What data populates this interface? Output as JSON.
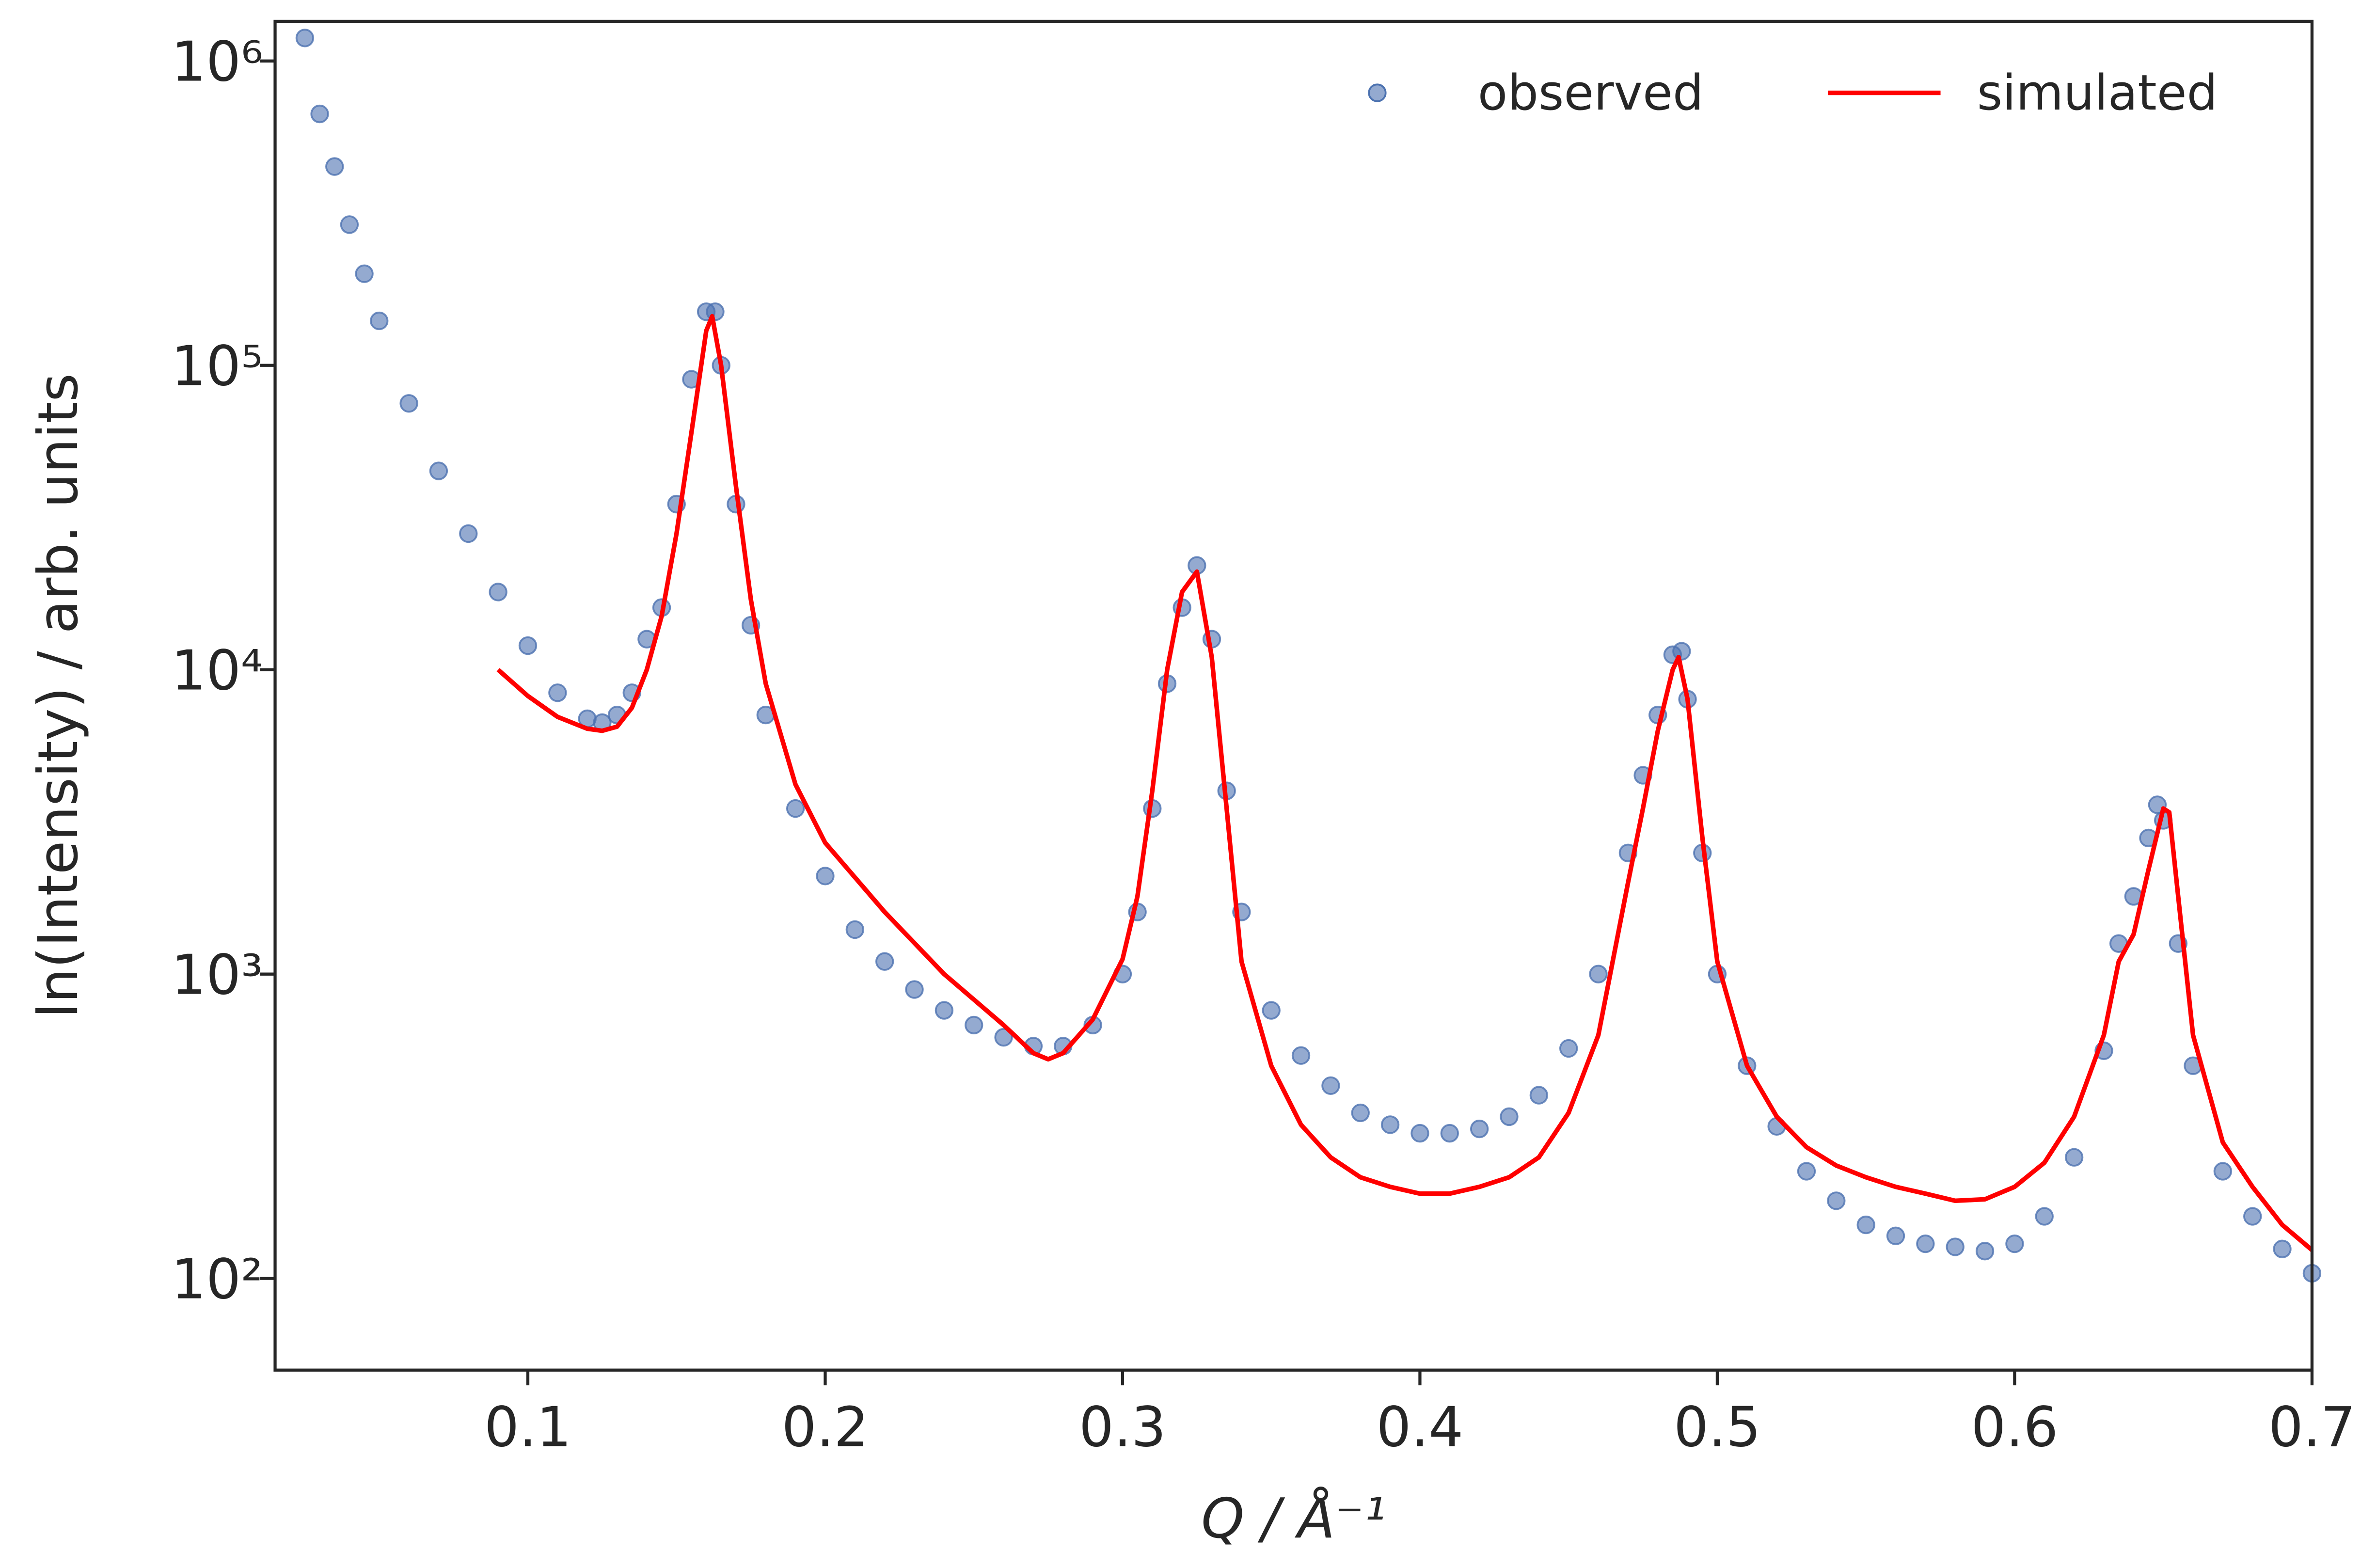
{
  "chart_data": {
    "type": "scatter",
    "xlabel": "Q / Å⁻¹",
    "ylabel": "ln(Intensity) / arb. units",
    "yscale": "log",
    "xlim": [
      0.015,
      0.7
    ],
    "ylim": [
      50,
      1350000
    ],
    "xticks": [
      0.1,
      0.2,
      0.3,
      0.4,
      0.5,
      0.6,
      0.7
    ],
    "yticks": [
      {
        "value": 100,
        "label": "10²"
      },
      {
        "value": 1000,
        "label": "10³"
      },
      {
        "value": 10000,
        "label": "10⁴"
      },
      {
        "value": 100000,
        "label": "10⁵"
      },
      {
        "value": 1000000,
        "label": "10⁶"
      }
    ],
    "legend": "upper right",
    "series": [
      {
        "name": "observed",
        "type": "scatter",
        "color": "#4c72b0",
        "x": [
          0.025,
          0.03,
          0.035,
          0.04,
          0.045,
          0.05,
          0.06,
          0.07,
          0.08,
          0.09,
          0.1,
          0.11,
          0.12,
          0.125,
          0.13,
          0.135,
          0.14,
          0.145,
          0.15,
          0.155,
          0.16,
          0.163,
          0.165,
          0.17,
          0.175,
          0.18,
          0.19,
          0.2,
          0.21,
          0.22,
          0.23,
          0.24,
          0.25,
          0.26,
          0.27,
          0.28,
          0.29,
          0.3,
          0.305,
          0.31,
          0.315,
          0.32,
          0.325,
          0.33,
          0.335,
          0.34,
          0.35,
          0.36,
          0.37,
          0.38,
          0.39,
          0.4,
          0.41,
          0.42,
          0.43,
          0.44,
          0.45,
          0.46,
          0.47,
          0.475,
          0.48,
          0.485,
          0.488,
          0.49,
          0.495,
          0.5,
          0.51,
          0.52,
          0.53,
          0.54,
          0.55,
          0.56,
          0.57,
          0.58,
          0.59,
          0.6,
          0.61,
          0.62,
          0.63,
          0.635,
          0.64,
          0.645,
          0.648,
          0.65,
          0.655,
          0.66,
          0.67,
          0.68,
          0.69,
          0.7
        ],
        "values": [
          1190000,
          670000,
          450000,
          290000,
          200000,
          140000,
          75000,
          45000,
          28000,
          18000,
          12000,
          8400,
          6900,
          6700,
          7100,
          8400,
          12600,
          16000,
          35000,
          90000,
          150000,
          150000,
          100000,
          35000,
          14000,
          7100,
          3500,
          2100,
          1400,
          1100,
          890,
          760,
          680,
          620,
          580,
          580,
          680,
          1000,
          1600,
          3500,
          9000,
          16000,
          22000,
          12600,
          4000,
          1600,
          760,
          540,
          430,
          350,
          320,
          300,
          300,
          310,
          340,
          400,
          570,
          1000,
          2500,
          4500,
          7100,
          11200,
          11500,
          8000,
          2500,
          1000,
          500,
          316,
          225,
          180,
          150,
          138,
          130,
          127,
          123,
          130,
          160,
          250,
          560,
          1260,
          1800,
          2800,
          3600,
          3200,
          1260,
          500,
          225,
          160,
          125,
          104
        ]
      },
      {
        "name": "simulated",
        "type": "line",
        "color": "#ff0000",
        "x": [
          0.09,
          0.1,
          0.11,
          0.12,
          0.125,
          0.13,
          0.135,
          0.14,
          0.145,
          0.15,
          0.155,
          0.16,
          0.162,
          0.165,
          0.17,
          0.175,
          0.18,
          0.19,
          0.2,
          0.22,
          0.24,
          0.26,
          0.27,
          0.275,
          0.28,
          0.29,
          0.3,
          0.305,
          0.31,
          0.315,
          0.32,
          0.325,
          0.33,
          0.335,
          0.34,
          0.35,
          0.36,
          0.37,
          0.38,
          0.39,
          0.4,
          0.41,
          0.42,
          0.43,
          0.44,
          0.45,
          0.46,
          0.47,
          0.475,
          0.48,
          0.485,
          0.487,
          0.49,
          0.495,
          0.5,
          0.51,
          0.52,
          0.53,
          0.54,
          0.55,
          0.56,
          0.57,
          0.58,
          0.59,
          0.6,
          0.61,
          0.62,
          0.63,
          0.635,
          0.64,
          0.645,
          0.65,
          0.652,
          0.655,
          0.66,
          0.67,
          0.68,
          0.69,
          0.7
        ],
        "values": [
          10000,
          8200,
          7000,
          6400,
          6300,
          6500,
          7500,
          10000,
          15000,
          28000,
          60000,
          130000,
          145000,
          100000,
          40000,
          17000,
          9000,
          4200,
          2700,
          1600,
          1000,
          680,
          550,
          525,
          550,
          710,
          1120,
          1800,
          4000,
          10000,
          18000,
          21000,
          11000,
          3500,
          1100,
          500,
          320,
          250,
          215,
          200,
          190,
          190,
          200,
          215,
          250,
          350,
          630,
          2000,
          3500,
          6300,
          10000,
          11000,
          8000,
          2800,
          1100,
          500,
          340,
          270,
          235,
          215,
          200,
          190,
          180,
          182,
          200,
          240,
          340,
          630,
          1100,
          1350,
          2200,
          3500,
          3400,
          1800,
          630,
          280,
          200,
          150,
          124
        ]
      }
    ]
  }
}
